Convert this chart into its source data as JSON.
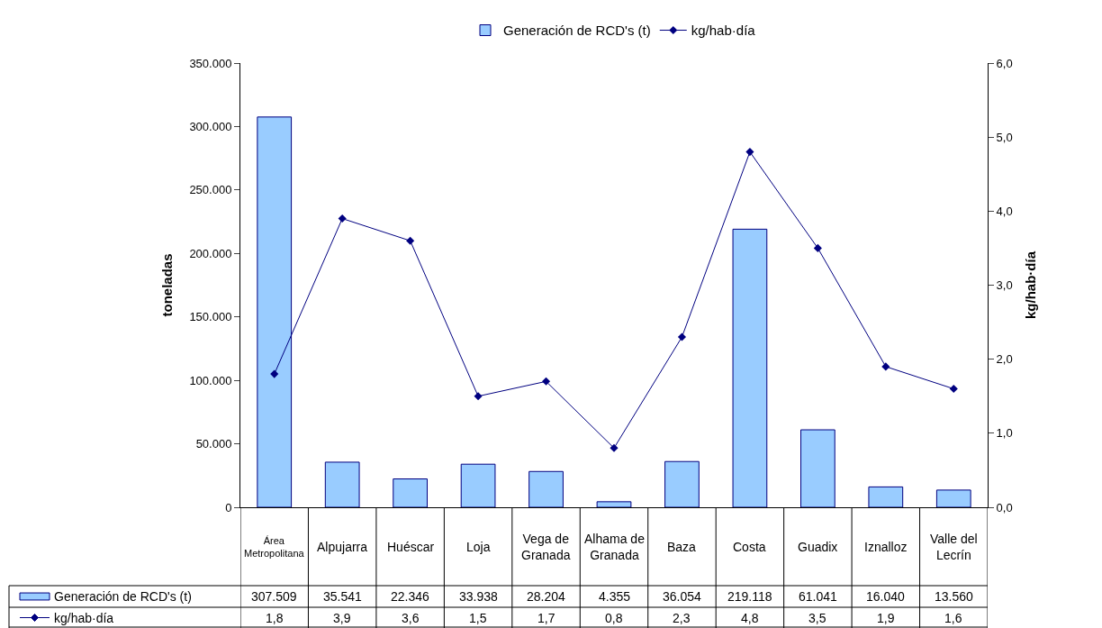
{
  "chart_data": {
    "type": "bar",
    "categories": [
      "Área Metropolitana",
      "Alpujarra",
      "Huéscar",
      "Loja",
      "Vega de Granada",
      "Alhama de Granada",
      "Baza",
      "Costa",
      "Guadix",
      "Iznalloz",
      "Valle del Lecrín"
    ],
    "series": [
      {
        "name": "Generación de RCD's (t)",
        "color": "#99ccff",
        "values": [
          307509,
          35541,
          22346,
          33938,
          28204,
          4355,
          36054,
          219118,
          61041,
          16040,
          13560
        ],
        "value_labels": [
          "307.509",
          "35.541",
          "22.346",
          "33.938",
          "28.204",
          "4.355",
          "36.054",
          "219.118",
          "61.041",
          "16.040",
          "13.560"
        ]
      },
      {
        "name": "kg/hab·día",
        "type": "line",
        "axis": "y2",
        "color": "#000080",
        "marker": "diamond",
        "values": [
          1.8,
          3.9,
          3.6,
          1.5,
          1.7,
          0.8,
          2.3,
          4.8,
          3.5,
          1.9,
          1.6
        ],
        "value_labels": [
          "1,8",
          "3,9",
          "3,6",
          "1,5",
          "1,7",
          "0,8",
          "2,3",
          "4,8",
          "3,5",
          "1,9",
          "1,6"
        ]
      }
    ],
    "ylabel": "toneladas",
    "y2label": "kg/hab·día",
    "ylim": [
      0,
      350000
    ],
    "yticks": [
      {
        "value": 0,
        "label": "0"
      },
      {
        "value": 50000,
        "label": "50.000"
      },
      {
        "value": 100000,
        "label": "100.000"
      },
      {
        "value": 150000,
        "label": "150.000"
      },
      {
        "value": 200000,
        "label": "200.000"
      },
      {
        "value": 250000,
        "label": "250.000"
      },
      {
        "value": 300000,
        "label": "300.000"
      },
      {
        "value": 350000,
        "label": "350.000"
      }
    ],
    "y2lim": [
      0,
      6
    ],
    "y2ticks": [
      {
        "value": 0,
        "label": "0,0"
      },
      {
        "value": 1,
        "label": "1,0"
      },
      {
        "value": 2,
        "label": "2,0"
      },
      {
        "value": 3,
        "label": "3,0"
      },
      {
        "value": 4,
        "label": "4,0"
      },
      {
        "value": 5,
        "label": "5,0"
      },
      {
        "value": 6,
        "label": "6,0"
      }
    ],
    "legend": "top"
  }
}
